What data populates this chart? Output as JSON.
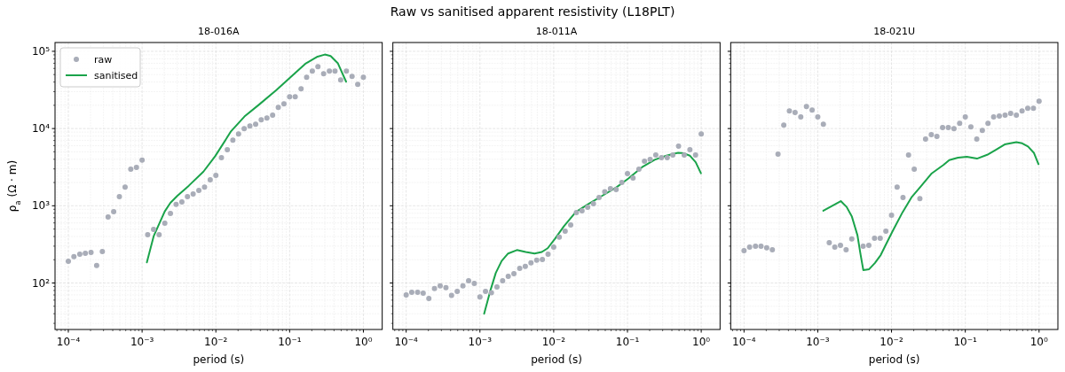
{
  "chart_data": [
    {
      "type": "line",
      "title": "18-016A",
      "annotations": [
        "Raw vs sanitised apparent resistivity (L18PLT)"
      ],
      "xlabel": "period (s)",
      "ylabel": "ρ$_{a}$  (Ω · m)",
      "log": "xy",
      "grid": true,
      "legend": "top left",
      "xlim": [
        6.6e-05,
        1.8
      ],
      "ylim": [
        25,
        130000
      ],
      "xticks": [
        {
          "value": 0.0001,
          "label": "10⁻⁴"
        },
        {
          "value": 0.001,
          "label": "10⁻³"
        },
        {
          "value": 0.01,
          "label": "10⁻²"
        },
        {
          "value": 0.1,
          "label": "10⁻¹"
        },
        {
          "value": 1,
          "label": "10⁰"
        }
      ],
      "yticks": [
        {
          "value": 100,
          "label": "10²"
        },
        {
          "value": 1000,
          "label": "10³"
        },
        {
          "value": 10000,
          "label": "10⁴"
        },
        {
          "value": 100000,
          "label": "10⁵"
        }
      ],
      "series": [
        {
          "name": "raw",
          "type": "scatter",
          "marker": "circle",
          "color": "#a9adb8",
          "x": [
            0.0001,
            0.000119,
            0.000143,
            0.00017,
            0.000203,
            0.000242,
            0.000289,
            0.000346,
            0.000412,
            0.000492,
            0.000588,
            0.000702,
            0.000838,
            0.001,
            0.00119,
            0.00143,
            0.0017,
            0.00203,
            0.00242,
            0.00289,
            0.00346,
            0.00412,
            0.00492,
            0.00588,
            0.00702,
            0.00838,
            0.01,
            0.0119,
            0.0143,
            0.017,
            0.0203,
            0.0242,
            0.0289,
            0.0346,
            0.0412,
            0.0492,
            0.0588,
            0.0702,
            0.0838,
            0.1,
            0.119,
            0.143,
            0.17,
            0.203,
            0.242,
            0.289,
            0.346,
            0.412,
            0.492,
            0.588,
            0.702,
            0.838,
            1
          ],
          "values": [
            191,
            219,
            236,
            243,
            249,
            168,
            256,
            716,
            839,
            1310,
            1750,
            2970,
            3130,
            3900,
            423,
            495,
            423,
            596,
            796,
            1040,
            1120,
            1310,
            1420,
            1580,
            1750,
            2170,
            2470,
            4190,
            5310,
            7090,
            8530,
            10000,
            10800,
            11400,
            13000,
            13700,
            14900,
            18800,
            20900,
            25800,
            25800,
            32700,
            46100,
            55400,
            63300,
            51300,
            55400,
            55400,
            42700,
            55400,
            47400,
            37400,
            46100
          ]
        },
        {
          "name": "sanitised",
          "type": "line",
          "color": "#1aa34a",
          "x": [
            0.00116,
            0.00144,
            0.00203,
            0.00242,
            0.00299,
            0.0043,
            0.00679,
            0.00978,
            0.0161,
            0.0244,
            0.0385,
            0.0665,
            0.105,
            0.166,
            0.239,
            0.3,
            0.36,
            0.452,
            0.583
          ],
          "values": [
            185,
            407,
            847,
            1090,
            1340,
            1820,
            2770,
            4380,
            9250,
            14300,
            20400,
            31600,
            47000,
            69800,
            85300,
            90800,
            86900,
            69800,
            40400
          ]
        }
      ]
    },
    {
      "type": "line",
      "title": "18-011A",
      "xlabel": "period (s)",
      "log": "xy",
      "grid": true,
      "tick_labels": "x",
      "xlim": [
        6.6e-05,
        1.8
      ],
      "ylim": [
        25,
        130000
      ],
      "xticks": [
        {
          "value": 0.0001,
          "label": "10⁻⁴"
        },
        {
          "value": 0.001,
          "label": "10⁻³"
        },
        {
          "value": 0.01,
          "label": "10⁻²"
        },
        {
          "value": 0.1,
          "label": "10⁻¹"
        },
        {
          "value": 1,
          "label": "10⁰"
        }
      ],
      "yticks": [
        100,
        1000,
        10000,
        100000
      ],
      "series": [
        {
          "type": "scatter",
          "marker": "circle",
          "color": "#a9adb8",
          "x": [
            0.0001,
            0.000119,
            0.000143,
            0.00017,
            0.000203,
            0.000242,
            0.000289,
            0.000346,
            0.000412,
            0.000492,
            0.000588,
            0.000702,
            0.000838,
            0.001,
            0.00119,
            0.00143,
            0.0017,
            0.00203,
            0.00242,
            0.00289,
            0.00346,
            0.00412,
            0.00492,
            0.00588,
            0.00702,
            0.00838,
            0.01,
            0.0119,
            0.0143,
            0.017,
            0.0203,
            0.0242,
            0.0289,
            0.0346,
            0.0412,
            0.0492,
            0.0588,
            0.0702,
            0.0838,
            0.1,
            0.119,
            0.143,
            0.17,
            0.203,
            0.242,
            0.289,
            0.346,
            0.412,
            0.492,
            0.588,
            0.702,
            0.838,
            1
          ],
          "values": [
            70,
            76,
            76,
            74,
            63,
            85,
            92,
            87,
            69,
            78,
            92,
            107,
            99,
            66,
            78,
            75,
            89,
            107,
            122,
            132,
            155,
            164,
            182,
            197,
            202,
            236,
            292,
            391,
            470,
            565,
            817,
            861,
            957,
            1060,
            1280,
            1520,
            1660,
            1620,
            2000,
            2610,
            2290,
            2970,
            3770,
            3970,
            4530,
            4190,
            4190,
            4530,
            5900,
            4530,
            5310,
            4530,
            8530
          ]
        },
        {
          "type": "line",
          "color": "#1aa34a",
          "x": [
            0.00114,
            0.00137,
            0.00164,
            0.00197,
            0.00241,
            0.00317,
            0.00418,
            0.0055,
            0.0069,
            0.00829,
            0.0104,
            0.0137,
            0.0198,
            0.0285,
            0.045,
            0.0711,
            0.103,
            0.162,
            0.234,
            0.337,
            0.485,
            0.583,
            0.7,
            0.841,
            0.991
          ],
          "values": [
            40,
            77,
            135,
            193,
            241,
            267,
            252,
            241,
            252,
            282,
            374,
            541,
            824,
            1030,
            1340,
            1740,
            2260,
            3220,
            3940,
            4460,
            4860,
            4780,
            4460,
            3670,
            2630
          ]
        }
      ]
    },
    {
      "type": "line",
      "title": "18-021U",
      "xlabel": "period (s)",
      "log": "xy",
      "grid": true,
      "tick_labels": "x",
      "xlim": [
        6.6e-05,
        1.8
      ],
      "ylim": [
        25,
        130000
      ],
      "xticks": [
        {
          "value": 0.0001,
          "label": "10⁻⁴"
        },
        {
          "value": 0.001,
          "label": "10⁻³"
        },
        {
          "value": 0.01,
          "label": "10⁻²"
        },
        {
          "value": 0.1,
          "label": "10⁻¹"
        },
        {
          "value": 1,
          "label": "10⁰"
        }
      ],
      "yticks": [
        100,
        1000,
        10000,
        100000
      ],
      "series": [
        {
          "type": "scatter",
          "marker": "circle",
          "color": "#a9adb8",
          "x": [
            0.0001,
            0.000119,
            0.000143,
            0.00017,
            0.000203,
            0.000242,
            0.000289,
            0.000346,
            0.000412,
            0.000492,
            0.000588,
            0.000702,
            0.000838,
            0.001,
            0.00119,
            0.00143,
            0.0017,
            0.00203,
            0.00242,
            0.00289,
            0.00346,
            0.00412,
            0.00492,
            0.00588,
            0.00702,
            0.00838,
            0.01,
            0.0119,
            0.0143,
            0.017,
            0.0203,
            0.0242,
            0.0289,
            0.0346,
            0.0412,
            0.0492,
            0.0588,
            0.0702,
            0.0838,
            0.1,
            0.119,
            0.143,
            0.17,
            0.203,
            0.242,
            0.289,
            0.346,
            0.412,
            0.492,
            0.588,
            0.702,
            0.838,
            1
          ],
          "values": [
            263,
            292,
            300,
            300,
            285,
            270,
            4660,
            11100,
            16900,
            16100,
            14100,
            19300,
            17400,
            14100,
            11400,
            333,
            292,
            308,
            270,
            371,
            null,
            300,
            308,
            380,
            380,
            470,
            755,
            1750,
            1280,
            4530,
            2970,
            1240,
            7290,
            8320,
            7890,
            10300,
            10300,
            10000,
            11700,
            14100,
            10500,
            7290,
            9480,
            11700,
            14100,
            14500,
            14900,
            15700,
            14900,
            16900,
            18300,
            18300,
            22600
          ]
        },
        {
          "type": "line",
          "color": "#1aa34a",
          "x": [
            0.00119,
            0.00205,
            0.00246,
            0.0029,
            0.00345,
            0.00378,
            0.00414,
            0.00497,
            0.00596,
            0.00715,
            0.00857,
            0.0103,
            0.0141,
            0.0186,
            0.0244,
            0.0351,
            0.0505,
            0.0606,
            0.0796,
            0.105,
            0.144,
            0.198,
            0.26,
            0.342,
            0.492,
            0.59,
            0.708,
            0.849,
            0.982
          ],
          "values": [
            861,
            1150,
            966,
            723,
            415,
            241,
            147,
            151,
            182,
            231,
            328,
            466,
            824,
            1280,
            1740,
            2630,
            3370,
            3910,
            4190,
            4300,
            4080,
            4570,
            5310,
            6220,
            6670,
            6440,
            5850,
            4860,
            3450
          ]
        }
      ]
    }
  ]
}
